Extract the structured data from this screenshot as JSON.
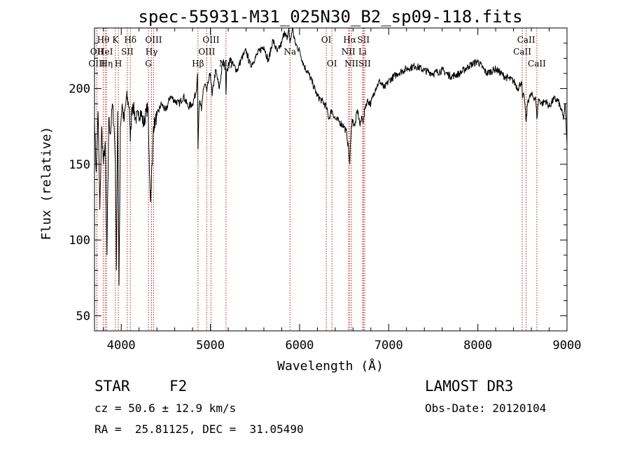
{
  "chart_data": {
    "type": "line",
    "title": "spec-55931-M31_025N30_B2_sp09-118.fits",
    "xlabel": "Wavelength (Å)",
    "ylabel": "Flux (relative)",
    "xlim": [
      3700,
      9000
    ],
    "ylim": [
      40,
      240
    ],
    "x_ticks": [
      4000,
      5000,
      6000,
      7000,
      8000,
      9000
    ],
    "y_ticks": [
      50,
      100,
      150,
      200
    ],
    "x_minor_step": 200,
    "y_minor_step": 10,
    "series": [
      {
        "name": "flux",
        "x": [
          3700,
          3720,
          3740,
          3760,
          3780,
          3800,
          3820,
          3840,
          3860,
          3880,
          3900,
          3920,
          3935,
          3945,
          3960,
          3968,
          3975,
          3990,
          4010,
          4030,
          4060,
          4090,
          4102,
          4115,
          4130,
          4160,
          4190,
          4220,
          4250,
          4280,
          4300,
          4310,
          4320,
          4330,
          4340,
          4350,
          4360,
          4380,
          4400,
          4450,
          4500,
          4550,
          4600,
          4650,
          4700,
          4750,
          4800,
          4840,
          4855,
          4861,
          4870,
          4880,
          4900,
          4920,
          4940,
          4960,
          4980,
          5000,
          5020,
          5040,
          5060,
          5100,
          5140,
          5170,
          5175,
          5180,
          5190,
          5220,
          5260,
          5300,
          5350,
          5400,
          5450,
          5500,
          5550,
          5600,
          5650,
          5700,
          5750,
          5800,
          5830,
          5860,
          5880,
          5893,
          5900,
          5920,
          5950,
          6000,
          6050,
          6100,
          6150,
          6200,
          6250,
          6300,
          6330,
          6360,
          6400,
          6450,
          6500,
          6530,
          6550,
          6563,
          6575,
          6590,
          6620,
          6650,
          6680,
          6700,
          6717,
          6735,
          6760,
          6800,
          6850,
          6900,
          6950,
          7000,
          7100,
          7200,
          7300,
          7400,
          7500,
          7600,
          7700,
          7800,
          7900,
          8000,
          8100,
          8200,
          8300,
          8400,
          8450,
          8490,
          8500,
          8520,
          8542,
          8560,
          8600,
          8650,
          8662,
          8680,
          8720,
          8760,
          8800,
          8850,
          8900,
          8940,
          8960,
          8980,
          9000
        ],
        "y": [
          180,
          145,
          185,
          120,
          175,
          150,
          165,
          90,
          180,
          170,
          190,
          175,
          150,
          80,
          185,
          125,
          70,
          175,
          190,
          178,
          195,
          188,
          165,
          183,
          190,
          180,
          182,
          185,
          176,
          185,
          188,
          160,
          140,
          125,
          145,
          150,
          175,
          178,
          182,
          190,
          185,
          195,
          192,
          190,
          195,
          188,
          190,
          198,
          210,
          160,
          182,
          192,
          185,
          200,
          203,
          198,
          205,
          210,
          195,
          205,
          212,
          200,
          218,
          214,
          196,
          210,
          212,
          220,
          215,
          212,
          220,
          225,
          215,
          220,
          225,
          228,
          218,
          232,
          224,
          230,
          238,
          232,
          240,
          230,
          232,
          240,
          230,
          225,
          215,
          210,
          203,
          195,
          192,
          188,
          180,
          186,
          180,
          178,
          175,
          170,
          160,
          150,
          168,
          180,
          175,
          186,
          175,
          182,
          178,
          188,
          192,
          190,
          200,
          205,
          200,
          205,
          210,
          213,
          215,
          212,
          210,
          212,
          208,
          210,
          215,
          218,
          210,
          213,
          208,
          205,
          200,
          205,
          194,
          195,
          178,
          192,
          196,
          193,
          180,
          193,
          190,
          192,
          188,
          193,
          192,
          185,
          180,
          190,
          162
        ]
      }
    ],
    "spectral_lines": [
      {
        "label": "Hθ",
        "wavelength": 3798,
        "row": 1
      },
      {
        "label": "OII",
        "wavelength": 3727,
        "row": 2
      },
      {
        "label": "HeI",
        "wavelength": 3820,
        "row": 2
      },
      {
        "label": "OIII",
        "wavelength": 3727,
        "row": 3
      },
      {
        "label": "Hη",
        "wavelength": 3835,
        "row": 3
      },
      {
        "label": "K",
        "wavelength": 3934,
        "row": 1
      },
      {
        "label": "SII",
        "wavelength": 4068,
        "row": 2
      },
      {
        "label": "H",
        "wavelength": 3968,
        "row": 3
      },
      {
        "label": "Hδ",
        "wavelength": 4102,
        "row": 1
      },
      {
        "label": "OIII",
        "wavelength": 4363,
        "row": 1
      },
      {
        "label": "Hγ",
        "wavelength": 4340,
        "row": 2
      },
      {
        "label": "G",
        "wavelength": 4305,
        "row": 3
      },
      {
        "label": "OIII",
        "wavelength": 5007,
        "row": 1
      },
      {
        "label": "OIII",
        "wavelength": 4959,
        "row": 2
      },
      {
        "label": "Hβ",
        "wavelength": 4861,
        "row": 3
      },
      {
        "label": "Mg",
        "wavelength": 5175,
        "row": 3
      },
      {
        "label": "Na",
        "wavelength": 5893,
        "row": 2
      },
      {
        "label": "OI",
        "wavelength": 6300,
        "row": 1
      },
      {
        "label": "OI",
        "wavelength": 6363,
        "row": 3
      },
      {
        "label": "Hα",
        "wavelength": 6563,
        "row": 1
      },
      {
        "label": "SII",
        "wavelength": 6717,
        "row": 1
      },
      {
        "label": "NII",
        "wavelength": 6548,
        "row": 2
      },
      {
        "label": "Li",
        "wavelength": 6707,
        "row": 2
      },
      {
        "label": "NII",
        "wavelength": 6583,
        "row": 3
      },
      {
        "label": "SII",
        "wavelength": 6731,
        "row": 3
      },
      {
        "label": "CaII",
        "wavelength": 8542,
        "row": 1
      },
      {
        "label": "CaII",
        "wavelength": 8498,
        "row": 2
      },
      {
        "label": "CaII",
        "wavelength": 8662,
        "row": 3
      }
    ],
    "line_color": "#000000",
    "marker_line_color": "#b22222"
  },
  "info": {
    "object_class": "STAR",
    "subclass": "F2",
    "survey": "LAMOST DR3",
    "redshift_line": "cz = 50.6 ± 12.9 km/s",
    "obs_date_line": "Obs-Date: 20120104",
    "coords_line": "RA =  25.81125, DEC =  31.05490"
  }
}
